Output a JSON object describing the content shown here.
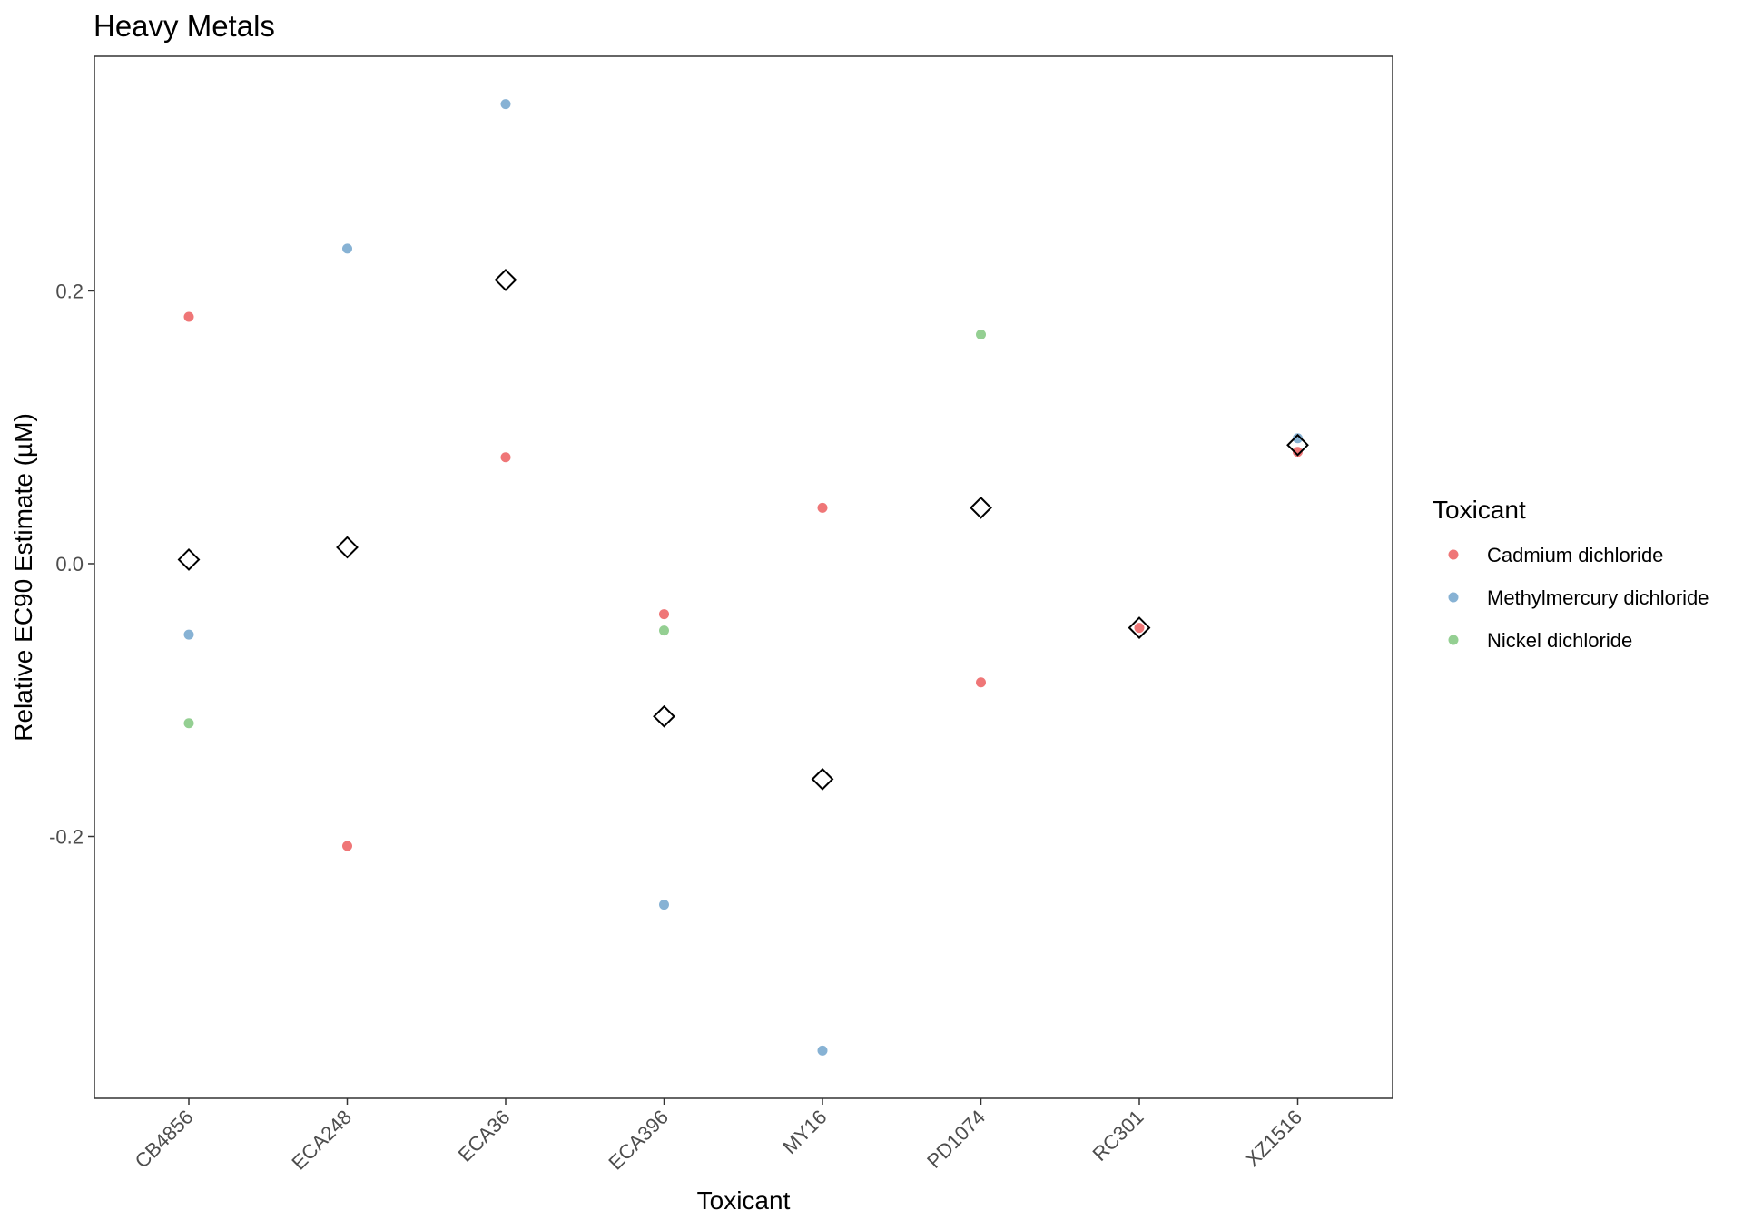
{
  "chart_data": {
    "type": "scatter",
    "title": "Heavy Metals",
    "xlabel": "Toxicant",
    "ylabel": "Relative EC90 Estimate (µM)",
    "categories": [
      "CB4856",
      "ECA248",
      "ECA36",
      "ECA396",
      "MY16",
      "PD1074",
      "RC301",
      "XZ1516"
    ],
    "ylim": [
      -0.392,
      0.372
    ],
    "yticks": [
      0.2,
      0.0,
      -0.2
    ],
    "ytick_labels": [
      "0.2",
      "0.0",
      "-0.2"
    ],
    "grid": false,
    "legend": {
      "title": "Toxicant",
      "placement": "right"
    },
    "series": [
      {
        "name": "Cadmium dichloride",
        "color": "#E41A1C",
        "values": [
          0.181,
          -0.207,
          0.078,
          -0.037,
          0.041,
          -0.087,
          -0.047,
          0.082
        ]
      },
      {
        "name": "Methylmercury dichloride",
        "color": "#377EB8",
        "values": [
          -0.052,
          0.231,
          0.337,
          -0.25,
          -0.357,
          null,
          null,
          0.092
        ]
      },
      {
        "name": "Nickel dichloride",
        "color": "#4DAF4A",
        "values": [
          -0.117,
          null,
          null,
          -0.049,
          null,
          0.168,
          null,
          null
        ]
      }
    ],
    "means": {
      "marker": "diamond-open",
      "values": [
        0.003,
        0.012,
        0.208,
        -0.112,
        -0.158,
        0.041,
        -0.047,
        0.087
      ]
    }
  }
}
